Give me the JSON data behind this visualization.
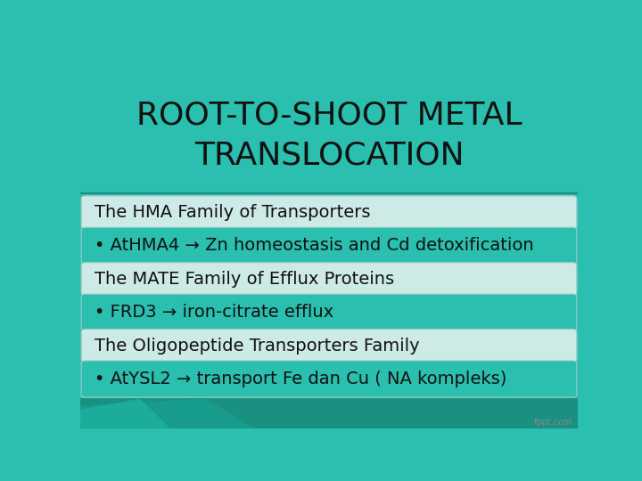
{
  "title_line1": "ROOT-TO-SHOOT METAL",
  "title_line2": "TRANSLOCATION",
  "title_color": "#111111",
  "title_fontsize": 26,
  "bg_teal": "#2ABFAF",
  "header_bg": "#CDEAE7",
  "bullet_bg": "#2ABFAF",
  "header_border": "#9BCCC7",
  "bullet_border": "#9BCCC7",
  "rows": [
    {
      "type": "header",
      "text": "The HMA Family of Transporters"
    },
    {
      "type": "bullet",
      "text": "• AtHMA4 → Zn homeostasis and Cd detoxification"
    },
    {
      "type": "header",
      "text": "The MATE Family of Efflux Proteins"
    },
    {
      "type": "bullet",
      "text": "• FRD3 → iron-citrate efflux"
    },
    {
      "type": "header",
      "text": "The Oligopeptide Transporters Family"
    },
    {
      "type": "bullet",
      "text": "• AtYSL2 → transport Fe dan Cu ( NA kompleks)"
    }
  ],
  "header_fontsize": 14,
  "bullet_fontsize": 14,
  "text_color": "#111111",
  "watermark": "fppt.com",
  "watermark_color": "#888888",
  "figsize": [
    7.2,
    5.4
  ],
  "dpi": 100
}
